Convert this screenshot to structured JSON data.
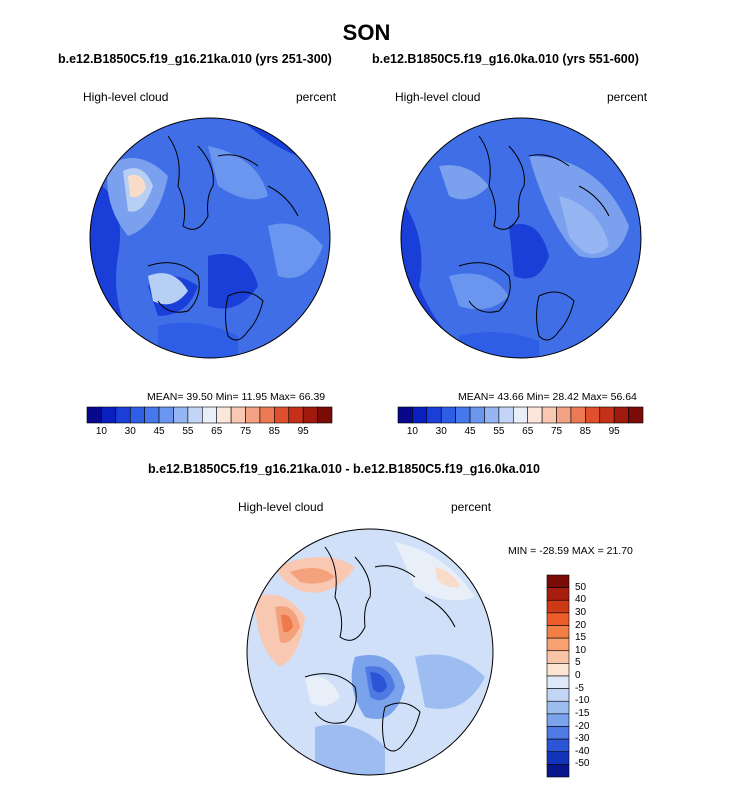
{
  "figure": {
    "season": "SON",
    "panel1": {
      "title": "b.e12.B1850C5.f19_g16.21ka.010 (yrs 251-300)",
      "variable": "High-level cloud",
      "units": "percent",
      "stats": "MEAN=  39.50  Min=  11.95  Max=  66.39",
      "stats_values": {
        "mean": 39.5,
        "min": 11.95,
        "max": 66.39
      }
    },
    "panel2": {
      "title": "b.e12.B1850C5.f19_g16.0ka.010 (yrs 551-600)",
      "variable": "High-level cloud",
      "units": "percent",
      "stats": "MEAN=  43.66  Min=  28.42  Max=  56.64",
      "stats_values": {
        "mean": 43.66,
        "min": 28.42,
        "max": 56.64
      }
    },
    "diff": {
      "title": "b.e12.B1850C5.f19_g16.21ka.010 - b.e12.B1850C5.f19_g16.0ka.010",
      "variable": "High-level cloud",
      "units": "percent",
      "stats": "MIN = -28.59 MAX =  21.70",
      "stats_values": {
        "min": -28.59,
        "max": 21.7
      }
    },
    "colorbar_abs": {
      "tick_labels": [
        "10",
        "30",
        "45",
        "55",
        "65",
        "75",
        "85",
        "95"
      ],
      "colors": [
        "#08088c",
        "#0a1fbf",
        "#1a3fd9",
        "#2e5ee6",
        "#4678eb",
        "#6a96ef",
        "#95b5f3",
        "#c2d5f7",
        "#e8eff9",
        "#fbe6dc",
        "#f8c8b2",
        "#f3a384",
        "#ec7a55",
        "#e0502e",
        "#c63018",
        "#a01a0e",
        "#7a0c08"
      ]
    },
    "colorbar_diff": {
      "tick_labels": [
        "50",
        "40",
        "30",
        "20",
        "15",
        "10",
        "5",
        "0",
        "-5",
        "-10",
        "-15",
        "-20",
        "-30",
        "-40",
        "-50"
      ],
      "colors": [
        "#7a0c08",
        "#a81e0e",
        "#cf3a16",
        "#ec5d2a",
        "#f47f46",
        "#f7a072",
        "#f9c4a6",
        "#fbe4d2",
        "#dfe9f8",
        "#c2d5f5",
        "#9dbdf1",
        "#7aa3ec",
        "#4f7ae3",
        "#2b55d6",
        "#1234bb",
        "#08188c"
      ]
    },
    "map_colors": {
      "deep_blue": "#1a3fd9",
      "mid_blue": "#3f6ee6",
      "light_blue": "#7aa0ee",
      "pale_blue": "#b8cff5",
      "pale_peach": "#f8dcc8",
      "diff_background": "#cfe0f8",
      "diff_orange": "#f4a27c",
      "diff_red": "#ee7a4c"
    }
  }
}
